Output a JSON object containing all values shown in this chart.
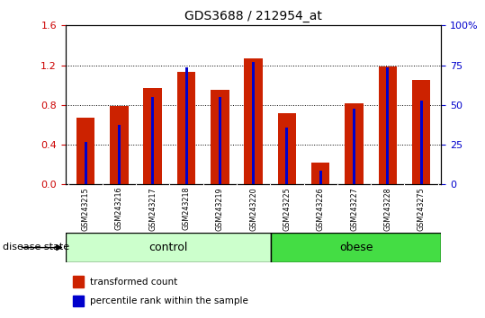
{
  "title": "GDS3688 / 212954_at",
  "samples": [
    "GSM243215",
    "GSM243216",
    "GSM243217",
    "GSM243218",
    "GSM243219",
    "GSM243220",
    "GSM243225",
    "GSM243226",
    "GSM243227",
    "GSM243228",
    "GSM243275"
  ],
  "red_values": [
    0.67,
    0.79,
    0.97,
    1.13,
    0.95,
    1.27,
    0.72,
    0.22,
    0.82,
    1.19,
    1.05
  ],
  "blue_values": [
    0.43,
    0.6,
    0.88,
    1.18,
    0.88,
    1.23,
    0.57,
    0.14,
    0.76,
    1.18,
    0.84
  ],
  "ylim_left": [
    0,
    1.6
  ],
  "ylim_right": [
    0,
    100
  ],
  "yticks_left": [
    0,
    0.4,
    0.8,
    1.2,
    1.6
  ],
  "yticks_right": [
    0,
    25,
    50,
    75,
    100
  ],
  "ylabel_left_color": "#cc0000",
  "ylabel_right_color": "#0000cc",
  "control_samples": 6,
  "obese_samples": 5,
  "control_label": "control",
  "obese_label": "obese",
  "group_label": "disease state",
  "legend_red": "transformed count",
  "legend_blue": "percentile rank within the sample",
  "red_color": "#cc2200",
  "blue_color": "#0000cc",
  "control_bg": "#ccffcc",
  "obese_bg": "#44dd44",
  "tick_label_bg": "#cccccc",
  "red_bar_width": 0.55,
  "blue_bar_width": 0.08,
  "grid_style": "dotted",
  "grid_color": "#000000"
}
